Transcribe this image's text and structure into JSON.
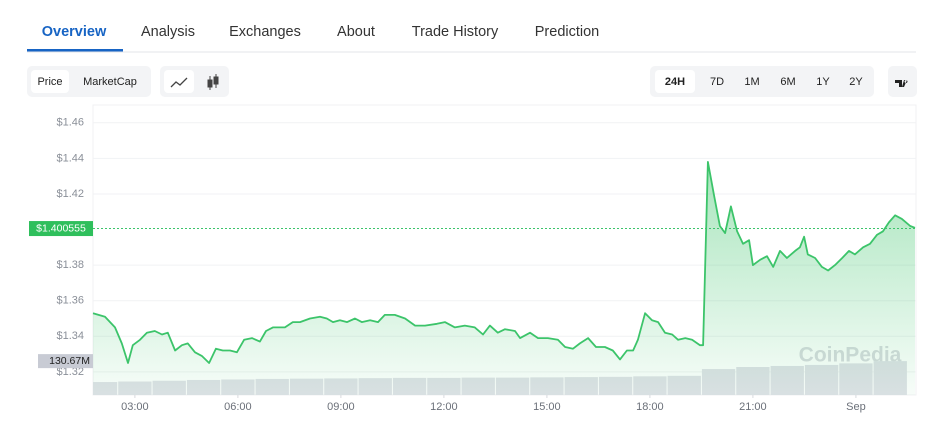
{
  "tabs": [
    "Overview",
    "Analysis",
    "Exchanges",
    "About",
    "Trade History",
    "Prediction"
  ],
  "active_tab": 0,
  "metric_buttons": [
    "Price",
    "MarketCap"
  ],
  "active_metric": 0,
  "range_buttons": [
    "24H",
    "7D",
    "1M",
    "6M",
    "1Y",
    "2Y"
  ],
  "active_range": 0,
  "chart_data": {
    "type": "line",
    "color": "#3cc46a",
    "x": [
      1.78,
      2.13,
      2.42,
      2.62,
      2.8,
      2.94,
      3.15,
      3.35,
      3.58,
      3.79,
      3.96,
      4.17,
      4.37,
      4.54,
      4.75,
      4.95,
      5.16,
      5.36,
      5.56,
      5.77,
      5.97,
      6.18,
      6.41,
      6.64,
      6.82,
      7.02,
      7.37,
      7.6,
      7.81,
      8.1,
      8.39,
      8.59,
      8.77,
      8.97,
      9.18,
      9.41,
      9.61,
      9.85,
      10.08,
      10.28,
      10.57,
      10.87,
      11.16,
      11.45,
      11.8,
      12.03,
      12.32,
      12.61,
      12.9,
      13.14,
      13.34,
      13.57,
      13.78,
      14.07,
      14.22,
      14.51,
      14.74,
      15.03,
      15.32,
      15.53,
      15.76,
      15.96,
      16.2,
      16.43,
      16.69,
      16.92,
      17.13,
      17.33,
      17.51,
      17.65,
      17.86,
      18.06,
      18.24,
      18.44,
      18.65,
      18.82,
      19.03,
      19.23,
      19.46,
      19.55,
      19.69,
      19.87,
      20.04,
      20.19,
      20.36,
      20.54,
      20.71,
      20.89,
      21.0,
      21.21,
      21.41,
      21.59,
      21.79,
      21.99,
      22.23,
      22.37,
      22.49,
      22.6,
      22.81,
      23.01,
      23.19,
      23.39,
      23.6,
      23.8,
      23.97,
      24.21,
      24.41,
      24.61,
      24.79,
      24.96,
      25.14,
      25.34,
      25.58,
      25.72
    ],
    "values": [
      1.353,
      1.351,
      1.345,
      1.336,
      1.325,
      1.335,
      1.338,
      1.342,
      1.343,
      1.341,
      1.342,
      1.332,
      1.335,
      1.336,
      1.331,
      1.329,
      1.325,
      1.333,
      1.332,
      1.332,
      1.331,
      1.338,
      1.339,
      1.337,
      1.343,
      1.345,
      1.345,
      1.348,
      1.348,
      1.35,
      1.351,
      1.35,
      1.348,
      1.349,
      1.348,
      1.35,
      1.348,
      1.349,
      1.348,
      1.352,
      1.352,
      1.35,
      1.346,
      1.346,
      1.347,
      1.348,
      1.345,
      1.346,
      1.345,
      1.341,
      1.346,
      1.342,
      1.344,
      1.343,
      1.339,
      1.342,
      1.339,
      1.339,
      1.338,
      1.334,
      1.333,
      1.336,
      1.339,
      1.334,
      1.334,
      1.332,
      1.327,
      1.332,
      1.332,
      1.338,
      1.353,
      1.349,
      1.348,
      1.342,
      1.341,
      1.338,
      1.339,
      1.338,
      1.335,
      1.335,
      1.438,
      1.419,
      1.402,
      1.398,
      1.413,
      1.399,
      1.392,
      1.394,
      1.38,
      1.383,
      1.385,
      1.379,
      1.388,
      1.384,
      1.388,
      1.39,
      1.396,
      1.386,
      1.384,
      1.379,
      1.377,
      1.38,
      1.384,
      1.388,
      1.386,
      1.39,
      1.392,
      1.397,
      1.399,
      1.404,
      1.408,
      1.406,
      1.402,
      1.401
    ],
    "xlim": [
      1.78,
      25.75
    ],
    "ylim": [
      1.307,
      1.47
    ],
    "xticks": [
      {
        "value": 3,
        "label": "03:00"
      },
      {
        "value": 6,
        "label": "06:00"
      },
      {
        "value": 9,
        "label": "09:00"
      },
      {
        "value": 12,
        "label": "12:00"
      },
      {
        "value": 15,
        "label": "15:00"
      },
      {
        "value": 18,
        "label": "18:00"
      },
      {
        "value": 21,
        "label": "21:00"
      },
      {
        "value": 24,
        "label": "Sep"
      }
    ],
    "yticks": [
      {
        "value": 1.32,
        "label": "$1.32"
      },
      {
        "value": 1.34,
        "label": "$1.34"
      },
      {
        "value": 1.36,
        "label": "$1.36"
      },
      {
        "value": 1.38,
        "label": "$1.38"
      },
      {
        "value": 1.42,
        "label": "$1.42"
      },
      {
        "value": 1.44,
        "label": "$1.44"
      },
      {
        "value": 1.46,
        "label": "$1.46"
      }
    ],
    "grid": true,
    "current_price": {
      "value": 1.400555,
      "label": "$1.400555"
    },
    "volume": {
      "axis": "y2",
      "color": "#dfe1e7",
      "x": [
        2,
        3,
        4,
        5,
        6,
        7,
        8,
        9,
        10,
        11,
        12,
        13,
        14,
        15,
        16,
        17,
        18,
        19,
        20,
        21,
        22,
        23,
        24,
        25
      ],
      "values": [
        50,
        52,
        55,
        58,
        60,
        62,
        63,
        64,
        65,
        66,
        66,
        67,
        67,
        68,
        69,
        70,
        72,
        74,
        100,
        108,
        112,
        116,
        122,
        130.67
      ],
      "current": {
        "value": 130.67,
        "label": "130.67M"
      }
    },
    "y2lim": [
      0,
      135
    ],
    "watermark": "CoinPedia"
  }
}
